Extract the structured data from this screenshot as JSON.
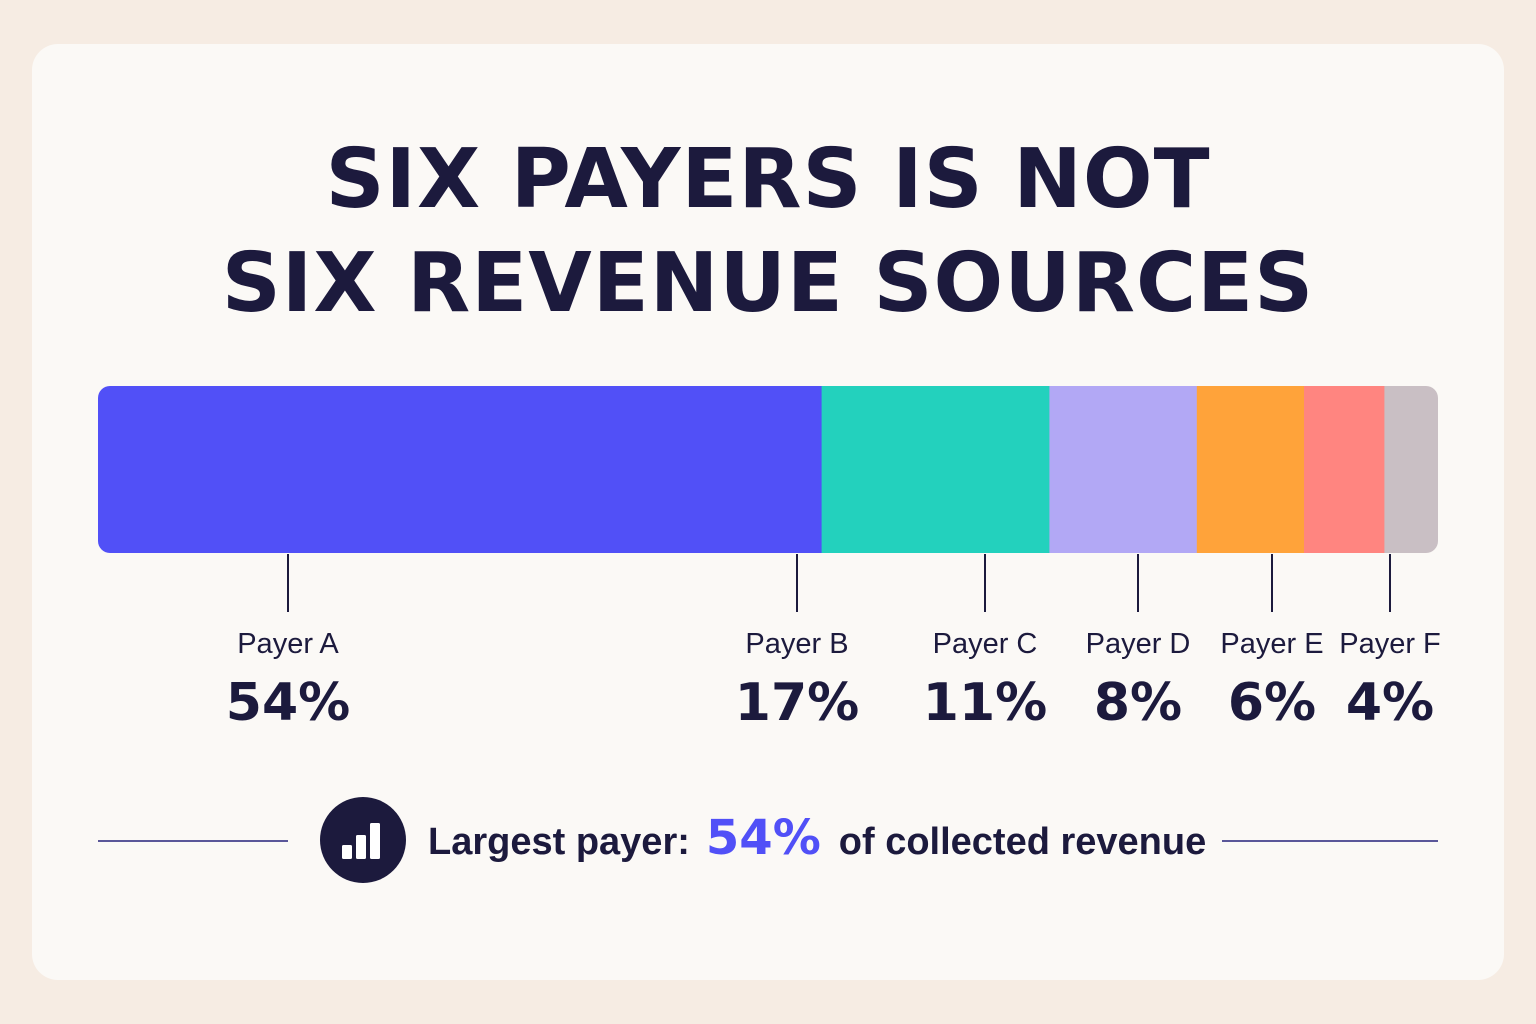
{
  "header": {
    "title_line1": "SIX PAYERS IS NOT",
    "title_line2": "SIX REVENUE SOURCES"
  },
  "chart_data": {
    "type": "bar",
    "orientation": "horizontal-stacked",
    "categories": [
      "Payer A",
      "Payer B",
      "Payer C",
      "Payer D",
      "Payer E",
      "Payer F"
    ],
    "values": [
      54,
      17,
      11,
      8,
      6,
      4
    ],
    "value_labels": [
      "54%",
      "17%",
      "11%",
      "8%",
      "6%",
      "4%"
    ],
    "colors": [
      "#5150f7",
      "#23d1bd",
      "#b2a8f5",
      "#ffa33a",
      "#ff8580",
      "#c9bfc4"
    ],
    "unit": "%",
    "total": 100,
    "grid": false
  },
  "footer": {
    "icon": "bar-chart-icon",
    "lead": "Largest payer:",
    "highlight": "54%",
    "tail": "of collected revenue",
    "highlight_color": "#5150f7"
  }
}
